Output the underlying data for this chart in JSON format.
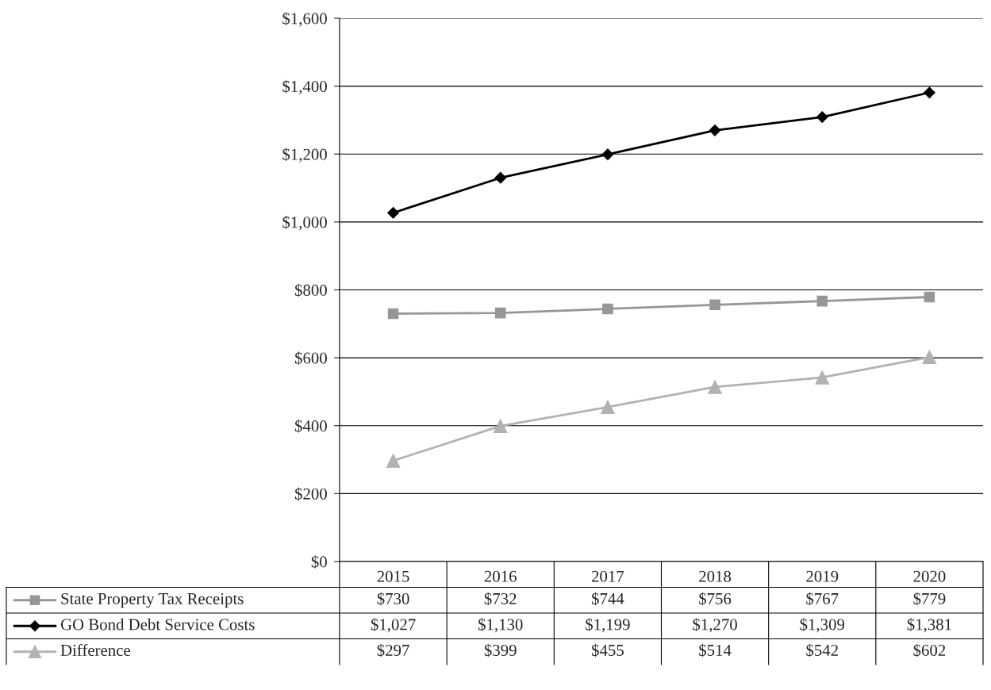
{
  "chart_data": {
    "type": "line",
    "categories": [
      "2015",
      "2016",
      "2017",
      "2018",
      "2019",
      "2020"
    ],
    "series": [
      {
        "name": "State Property Tax Receipts",
        "color": "#969696",
        "marker": "square",
        "values": [
          730,
          732,
          744,
          756,
          767,
          779
        ],
        "value_labels": [
          "$730",
          "$732",
          "$744",
          "$756",
          "$767",
          "$779"
        ]
      },
      {
        "name": "GO Bond Debt Service Costs",
        "color": "#000000",
        "marker": "diamond",
        "values": [
          1027,
          1130,
          1199,
          1270,
          1309,
          1381
        ],
        "value_labels": [
          "$1,027",
          "$1,130",
          "$1,199",
          "$1,270",
          "$1,309",
          "$1,381"
        ]
      },
      {
        "name": "Difference",
        "color": "#b2b2b2",
        "marker": "triangle",
        "values": [
          297,
          399,
          455,
          514,
          542,
          602
        ],
        "value_labels": [
          "$297",
          "$399",
          "$455",
          "$514",
          "$542",
          "$602"
        ]
      }
    ],
    "ylim": [
      0,
      1600
    ],
    "yticks": [
      {
        "value": 0,
        "label": "$0"
      },
      {
        "value": 200,
        "label": "$200"
      },
      {
        "value": 400,
        "label": "$400"
      },
      {
        "value": 600,
        "label": "$600"
      },
      {
        "value": 800,
        "label": "$800"
      },
      {
        "value": 1000,
        "label": "$1,000"
      },
      {
        "value": 1200,
        "label": "$1,200"
      },
      {
        "value": 1400,
        "label": "$1,400"
      },
      {
        "value": 1600,
        "label": "$1,600"
      }
    ],
    "grid": "y",
    "legend": "bottom",
    "line_style": "solid"
  }
}
